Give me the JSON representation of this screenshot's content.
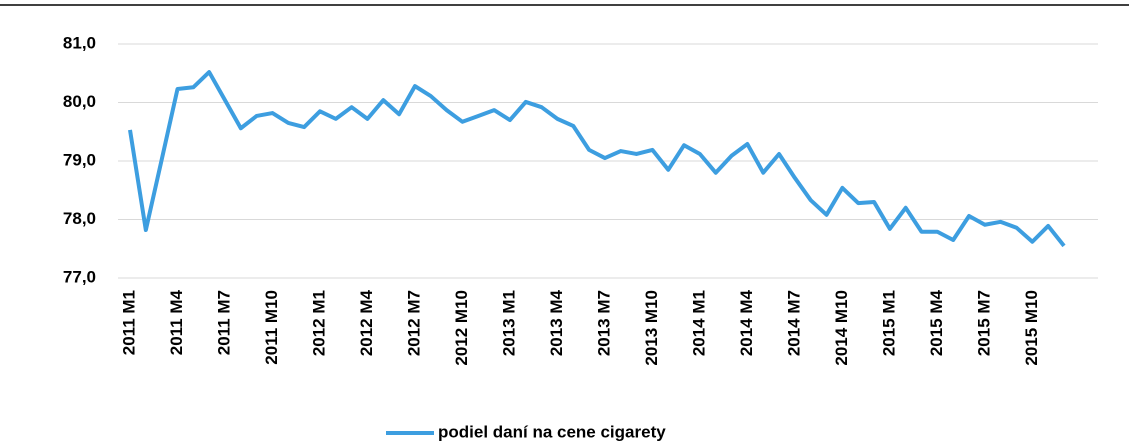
{
  "chart_data": {
    "type": "line",
    "categories": [
      "2011 M1",
      null,
      null,
      "2011 M4",
      null,
      null,
      "2011 M7",
      null,
      null,
      "2011 M10",
      null,
      null,
      "2012 M1",
      null,
      null,
      "2012 M4",
      null,
      null,
      "2012 M7",
      null,
      null,
      "2012 M10",
      null,
      null,
      "2013 M1",
      null,
      null,
      "2013 M4",
      null,
      null,
      "2013 M7",
      null,
      null,
      "2013 M10",
      null,
      null,
      "2014 M1",
      null,
      null,
      "2014 M4",
      null,
      null,
      "2014 M7",
      null,
      null,
      "2014 M10",
      null,
      null,
      "2015 M1",
      null,
      null,
      "2015 M4",
      null,
      null,
      "2015 M7",
      null,
      null,
      "2015 M10",
      null,
      null
    ],
    "series": [
      {
        "name": "podiel daní na cene cigarety",
        "color": "#3d9ee0",
        "values": [
          79.53,
          77.82,
          79.02,
          80.23,
          80.26,
          80.52,
          80.04,
          79.56,
          79.77,
          79.82,
          79.65,
          79.58,
          79.85,
          79.72,
          79.92,
          79.72,
          80.04,
          79.8,
          80.28,
          80.11,
          79.87,
          79.67,
          79.77,
          79.87,
          79.7,
          80.01,
          79.92,
          79.72,
          79.6,
          79.19,
          79.05,
          79.17,
          79.12,
          79.19,
          78.85,
          79.27,
          79.12,
          78.8,
          79.09,
          79.29,
          78.8,
          79.12,
          78.71,
          78.33,
          78.08,
          78.54,
          78.28,
          78.3,
          77.84,
          78.2,
          77.79,
          77.79,
          77.65,
          78.06,
          77.91,
          77.96,
          77.86,
          77.62,
          77.89,
          77.55
        ]
      }
    ],
    "ylim": [
      77,
      81
    ],
    "yticks": [
      {
        "value": 77,
        "label": "77,0"
      },
      {
        "value": 78,
        "label": "78,0"
      },
      {
        "value": 79,
        "label": "79,0"
      },
      {
        "value": 80,
        "label": "80,0"
      },
      {
        "value": 81,
        "label": "81,0"
      }
    ],
    "grid": true,
    "legend": "bottom"
  }
}
